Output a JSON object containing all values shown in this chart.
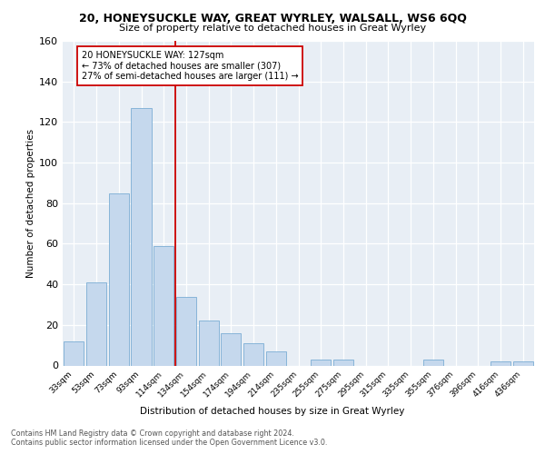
{
  "title1": "20, HONEYSUCKLE WAY, GREAT WYRLEY, WALSALL, WS6 6QQ",
  "title2": "Size of property relative to detached houses in Great Wyrley",
  "xlabel": "Distribution of detached houses by size in Great Wyrley",
  "ylabel": "Number of detached properties",
  "categories": [
    "33sqm",
    "53sqm",
    "73sqm",
    "93sqm",
    "114sqm",
    "134sqm",
    "154sqm",
    "174sqm",
    "194sqm",
    "214sqm",
    "235sqm",
    "255sqm",
    "275sqm",
    "295sqm",
    "315sqm",
    "335sqm",
    "355sqm",
    "376sqm",
    "396sqm",
    "416sqm",
    "436sqm"
  ],
  "values": [
    12,
    41,
    85,
    127,
    59,
    34,
    22,
    16,
    11,
    7,
    0,
    3,
    3,
    0,
    0,
    0,
    3,
    0,
    0,
    2,
    2
  ],
  "bar_color": "#c5d8ed",
  "bar_edge_color": "#7aadd4",
  "vline_x_index": 4.5,
  "vline_color": "#cc0000",
  "annotation_line1": "20 HONEYSUCKLE WAY: 127sqm",
  "annotation_line2": "← 73% of detached houses are smaller (307)",
  "annotation_line3": "27% of semi-detached houses are larger (111) →",
  "footer1": "Contains HM Land Registry data © Crown copyright and database right 2024.",
  "footer2": "Contains public sector information licensed under the Open Government Licence v3.0.",
  "ylim": [
    0,
    160
  ],
  "yticks": [
    0,
    20,
    40,
    60,
    80,
    100,
    120,
    140,
    160
  ],
  "plot_bg_color": "#e8eef5"
}
